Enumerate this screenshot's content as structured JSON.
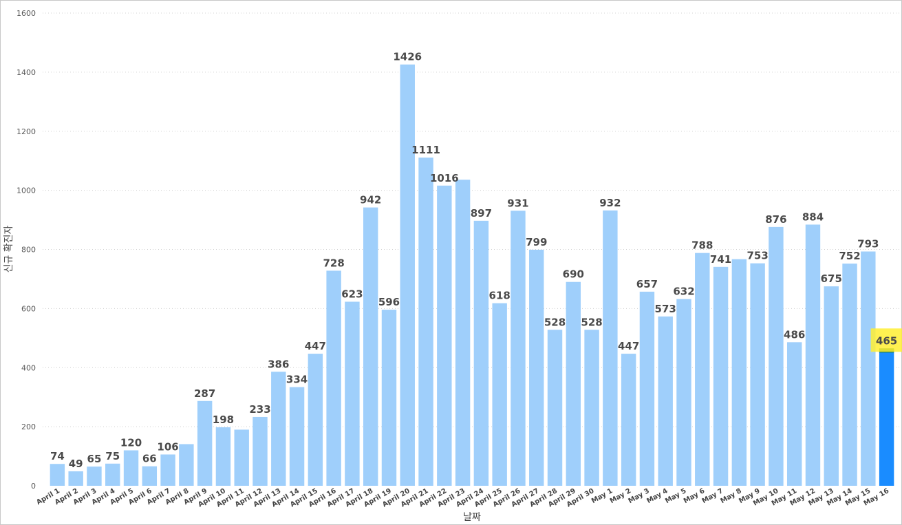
{
  "chart_data": {
    "type": "bar",
    "xlabel": "날짜",
    "ylabel": "신규 확진자",
    "ylim": [
      0,
      1600
    ],
    "yticks": [
      0,
      200,
      400,
      600,
      800,
      1000,
      1200,
      1400,
      1600
    ],
    "grid": true,
    "categories": [
      "April 1",
      "April 2",
      "April 3",
      "April 4",
      "April 5",
      "April 6",
      "April 7",
      "April 8",
      "April 9",
      "April 10",
      "April 11",
      "April 12",
      "April 13",
      "April 14",
      "April 15",
      "April 16",
      "April 17",
      "April 18",
      "April 19",
      "April 20",
      "April 21",
      "April 22",
      "April 23",
      "April 24",
      "April 25",
      "April 26",
      "April 27",
      "April 28",
      "April 29",
      "April 30",
      "May 1",
      "May 2",
      "May 3",
      "May 4",
      "May 5",
      "May 6",
      "May 7",
      "May 8",
      "May 9",
      "May 10",
      "May 11",
      "May 12",
      "May 13",
      "May 14",
      "May 15",
      "May 16"
    ],
    "values": [
      74,
      49,
      65,
      75,
      120,
      66,
      106,
      141,
      287,
      198,
      190,
      233,
      386,
      334,
      447,
      728,
      623,
      942,
      596,
      1426,
      1111,
      1016,
      1036,
      897,
      618,
      931,
      799,
      528,
      690,
      528,
      932,
      447,
      657,
      573,
      632,
      788,
      741,
      767,
      753,
      876,
      486,
      884,
      675,
      752,
      793,
      465
    ],
    "data_labels": [
      "74",
      "49",
      "65",
      "75",
      "120",
      "66",
      "106",
      "",
      "287",
      "198",
      "",
      "233",
      "386",
      "334",
      "447",
      "728",
      "623",
      "942",
      "596",
      "1426",
      "1111",
      "1016",
      "",
      "897",
      "618",
      "931",
      "799",
      "528",
      "690",
      "528",
      "932",
      "447",
      "657",
      "573",
      "632",
      "788",
      "741",
      "",
      "753",
      "876",
      "486",
      "884",
      "675",
      "752",
      "793",
      "465"
    ],
    "highlight_index": 45,
    "colors": {
      "bar": "#9fcffb",
      "highlight_bar": "#1a8cff",
      "highlight_cap": "#1b7a3c",
      "highlight_label_bg": "#ffee33",
      "grid": "#d0d0d0"
    }
  }
}
